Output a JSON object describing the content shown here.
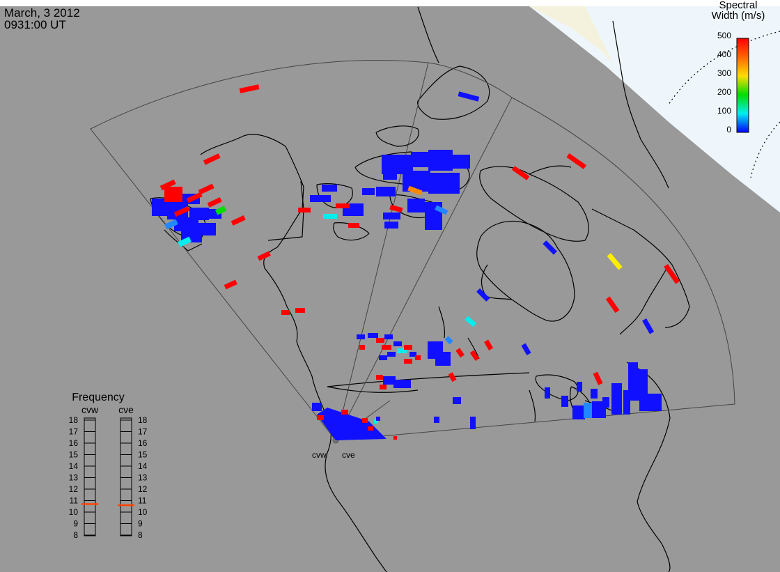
{
  "header": {
    "date": "March, 3 2012",
    "time": "0931:00 UT"
  },
  "colorbar": {
    "title_line1": "Spectral",
    "title_line2": "Width (m/s)",
    "ticks": [
      "500",
      "400",
      "300",
      "200",
      "100",
      "0"
    ],
    "colors": [
      "#ff0000",
      "#ff8800",
      "#ffee00",
      "#00dd00",
      "#00eeee",
      "#0000ff"
    ]
  },
  "frequency_panel": {
    "title": "Frequency",
    "radars": [
      {
        "name": "cvw",
        "active_mhz": 10.7
      },
      {
        "name": "cve",
        "active_mhz": 10.6
      }
    ],
    "scale": [
      "18",
      "17",
      "16",
      "15",
      "14",
      "13",
      "12",
      "11",
      "10",
      "9",
      "8"
    ],
    "marker_color": "#ff4400"
  },
  "site_labels": {
    "west": "cvw",
    "east": "cve"
  },
  "colors": {
    "background": "#999999",
    "daylight": "#eef6fb",
    "fov_outline": "#444444",
    "coast": "#000000",
    "low_width": "#1010ff",
    "high_width": "#ff0000"
  }
}
